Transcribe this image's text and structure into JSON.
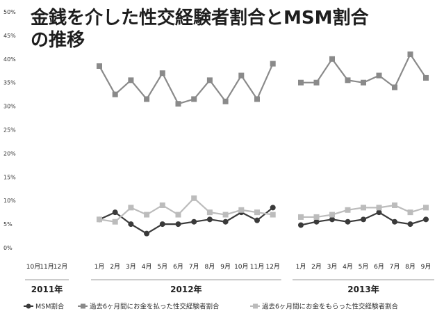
{
  "chart_data": {
    "type": "line",
    "title_line1": "金銭を介した性交経験者割合とMSM割合",
    "title_line2": "の推移",
    "xlabel": "",
    "ylabel": "",
    "ylim": [
      0,
      50
    ],
    "y_ticks": [
      "0%",
      "5%",
      "10%",
      "15%",
      "20%",
      "25%",
      "30%",
      "35%",
      "40%",
      "45%",
      "50%"
    ],
    "grid": false,
    "legend_position": "bottom",
    "x": [
      "10月",
      "11月",
      "12月",
      "1月",
      "2月",
      "3月",
      "4月",
      "5月",
      "6月",
      "7月",
      "8月",
      "9月",
      "10月",
      "11月",
      "12月",
      "1月",
      "2月",
      "3月",
      "4月",
      "5月",
      "6月",
      "7月",
      "8月",
      "9月"
    ],
    "year_groups": [
      {
        "label": "2011年",
        "start": 0,
        "end": 2
      },
      {
        "label": "2012年",
        "start": 3,
        "end": 14
      },
      {
        "label": "2013年",
        "start": 15,
        "end": 23
      }
    ],
    "series": [
      {
        "name": "MSM割合",
        "color": "#3a3a3a",
        "marker": "circle",
        "values": [
          null,
          null,
          null,
          6.0,
          7.5,
          5.0,
          3.0,
          5.0,
          5.0,
          5.5,
          6.0,
          5.5,
          7.5,
          5.8,
          8.5,
          4.8,
          5.5,
          6.0,
          5.5,
          6.0,
          7.5,
          5.5,
          5.0,
          6.0
        ]
      },
      {
        "name": "過去6ヶ月間にお金を払った性交経験者割合",
        "color": "#8a8a8a",
        "marker": "square",
        "values": [
          null,
          null,
          null,
          38.5,
          32.5,
          35.5,
          31.5,
          37.0,
          30.5,
          31.5,
          35.5,
          31.0,
          36.5,
          31.5,
          39.0,
          35.0,
          35.0,
          40.0,
          35.5,
          35.0,
          36.5,
          34.0,
          41.0,
          36.0
        ]
      },
      {
        "name": "過去6ヶ月間にお金をもらった性交経験者割合",
        "color": "#bcbcbc",
        "marker": "square",
        "values": [
          null,
          null,
          null,
          6.0,
          5.5,
          8.5,
          7.0,
          9.0,
          7.0,
          10.5,
          7.5,
          7.0,
          8.0,
          7.5,
          7.0,
          6.5,
          6.5,
          7.0,
          8.0,
          8.5,
          8.5,
          9.0,
          7.5,
          8.5
        ]
      }
    ]
  }
}
